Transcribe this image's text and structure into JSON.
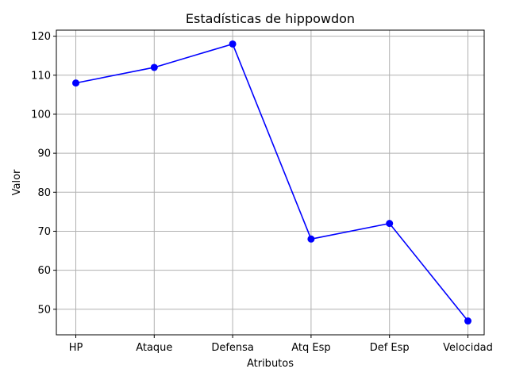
{
  "chart_data": {
    "type": "line",
    "title": "Estadísticas de hippowdon",
    "xlabel": "Atributos",
    "ylabel": "Valor",
    "categories": [
      "HP",
      "Ataque",
      "Defensa",
      "Atq Esp",
      "Def Esp",
      "Velocidad"
    ],
    "series": [
      {
        "values": [
          108,
          112,
          118,
          68,
          72,
          47
        ],
        "color": "#0000ff",
        "marker": "circle"
      }
    ],
    "ylim": [
      43.45,
      121.55
    ],
    "yticks": [
      50,
      60,
      70,
      80,
      90,
      100,
      110,
      120
    ],
    "grid": true,
    "grid_color": "#b0b0b0"
  }
}
